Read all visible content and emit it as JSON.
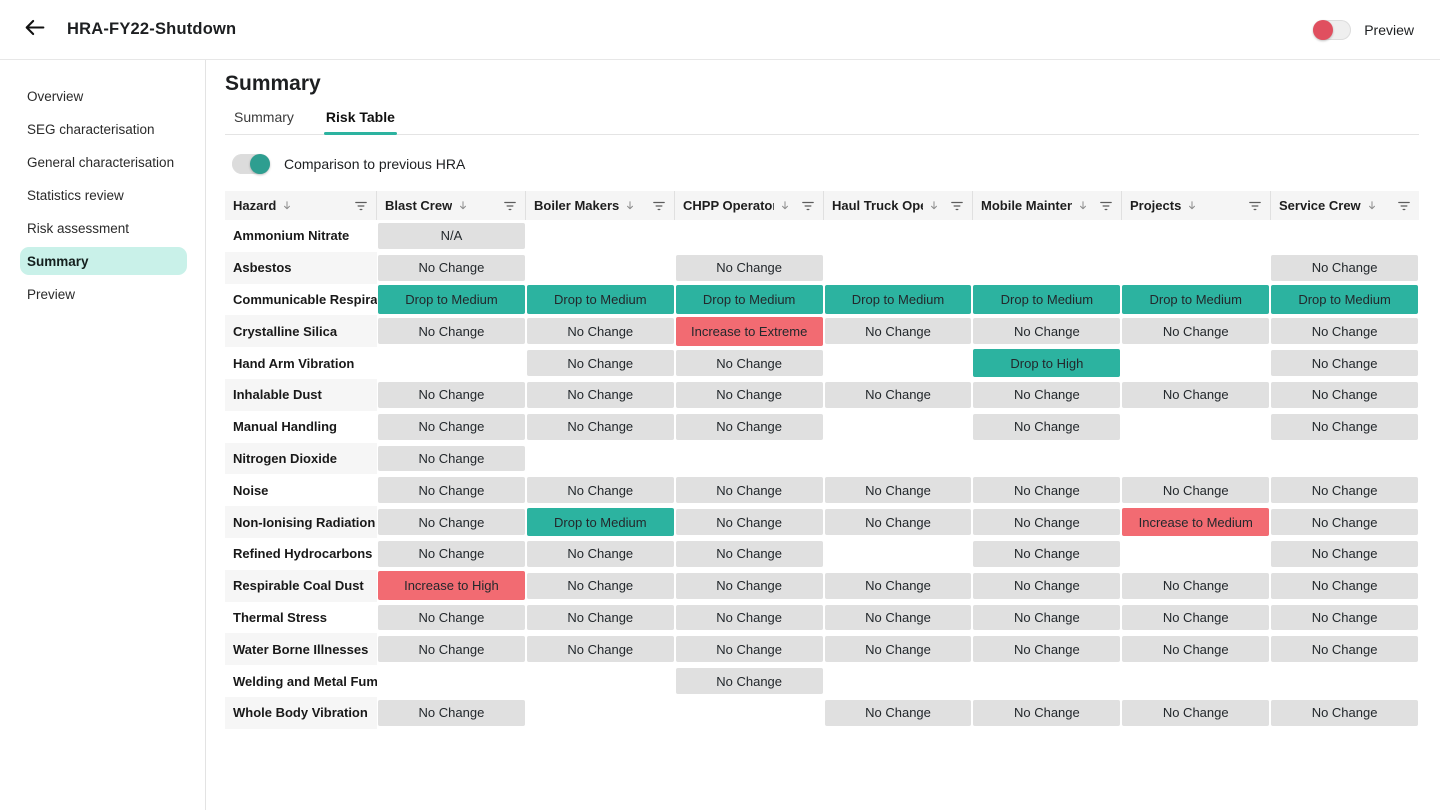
{
  "topbar": {
    "title": "HRA-FY22-Shutdown",
    "preview_label": "Preview",
    "preview_toggle_on": false
  },
  "sidebar": {
    "items": [
      {
        "label": "Overview",
        "active": false
      },
      {
        "label": "SEG characterisation",
        "active": false
      },
      {
        "label": "General characterisation",
        "active": false
      },
      {
        "label": "Statistics review",
        "active": false
      },
      {
        "label": "Risk assessment",
        "active": false
      },
      {
        "label": "Summary",
        "active": true
      },
      {
        "label": "Preview",
        "active": false
      }
    ]
  },
  "main": {
    "page_title": "Summary",
    "tabs": [
      {
        "label": "Summary",
        "active": false
      },
      {
        "label": "Risk Table",
        "active": true
      }
    ],
    "comparison_toggle_label": "Comparison to previous HRA",
    "comparison_toggle_on": true
  },
  "table": {
    "columns": [
      "Hazard",
      "Blast Crew",
      "Boiler Makers",
      "CHPP Operators",
      "Haul Truck Operators",
      "Mobile Maintenance",
      "Projects",
      "Service Crew"
    ],
    "rows": [
      {
        "hazard": "Ammonium Nitrate",
        "cells": [
          "N/A",
          "",
          "",
          "",
          "",
          "",
          ""
        ]
      },
      {
        "hazard": "Asbestos",
        "cells": [
          "No Change",
          "",
          "No Change",
          "",
          "",
          "",
          "No Change"
        ]
      },
      {
        "hazard": "Communicable Respiratory",
        "cells": [
          "Drop to Medium",
          "Drop to Medium",
          "Drop to Medium",
          "Drop to Medium",
          "Drop to Medium",
          "Drop to Medium",
          "Drop to Medium"
        ]
      },
      {
        "hazard": "Crystalline Silica",
        "cells": [
          "No Change",
          "No Change",
          "Increase to Extreme",
          "No Change",
          "No Change",
          "No Change",
          "No Change"
        ]
      },
      {
        "hazard": "Hand Arm Vibration",
        "cells": [
          "",
          "No Change",
          "No Change",
          "",
          "Drop to High",
          "",
          "No Change"
        ]
      },
      {
        "hazard": "Inhalable Dust",
        "cells": [
          "No Change",
          "No Change",
          "No Change",
          "No Change",
          "No Change",
          "No Change",
          "No Change"
        ]
      },
      {
        "hazard": "Manual Handling",
        "cells": [
          "No Change",
          "No Change",
          "No Change",
          "",
          "No Change",
          "",
          "No Change"
        ]
      },
      {
        "hazard": "Nitrogen Dioxide",
        "cells": [
          "No Change",
          "",
          "",
          "",
          "",
          "",
          ""
        ]
      },
      {
        "hazard": "Noise",
        "cells": [
          "No Change",
          "No Change",
          "No Change",
          "No Change",
          "No Change",
          "No Change",
          "No Change"
        ]
      },
      {
        "hazard": "Non-Ionising Radiation",
        "cells": [
          "No Change",
          "Drop to Medium",
          "No Change",
          "No Change",
          "No Change",
          "Increase to Medium",
          "No Change"
        ]
      },
      {
        "hazard": "Refined Hydrocarbons",
        "cells": [
          "No Change",
          "No Change",
          "No Change",
          "",
          "No Change",
          "",
          "No Change"
        ]
      },
      {
        "hazard": "Respirable Coal Dust",
        "cells": [
          "Increase to High",
          "No Change",
          "No Change",
          "No Change",
          "No Change",
          "No Change",
          "No Change"
        ]
      },
      {
        "hazard": "Thermal Stress",
        "cells": [
          "No Change",
          "No Change",
          "No Change",
          "No Change",
          "No Change",
          "No Change",
          "No Change"
        ]
      },
      {
        "hazard": "Water Borne Illnesses",
        "cells": [
          "No Change",
          "No Change",
          "No Change",
          "No Change",
          "No Change",
          "No Change",
          "No Change"
        ]
      },
      {
        "hazard": "Welding and Metal Fume",
        "cells": [
          "",
          "",
          "No Change",
          "",
          "",
          "",
          ""
        ]
      },
      {
        "hazard": "Whole Body Vibration",
        "cells": [
          "No Change",
          "",
          "",
          "No Change",
          "No Change",
          "No Change",
          "No Change"
        ]
      }
    ]
  },
  "colors": {
    "teal": "#2CB3A0",
    "red": "#F26B72",
    "gray_chip": "#E0E0E0",
    "pill": "#C9F1E9",
    "teal_knob": "#2E9E90",
    "red_knob": "#E04F5F"
  }
}
